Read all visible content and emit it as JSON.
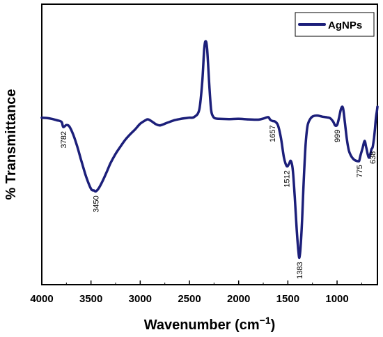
{
  "chart_data": {
    "type": "line",
    "title": "",
    "xlabel": "Wavenumber (cm",
    "xlabel_sup": "−1",
    "xlabel_close": ")",
    "ylabel": "% Transmittance",
    "xlim": [
      4000,
      590
    ],
    "ylim": [
      0,
      100
    ],
    "x_reversed": true,
    "y_ticks_shown": false,
    "x_ticks": [
      4000,
      3500,
      3000,
      2500,
      2000,
      1500,
      1000
    ],
    "x_tick_labels": [
      "4000",
      "3500",
      "3000",
      "2500",
      "2000",
      "1500",
      "1000"
    ],
    "grid": false,
    "legend": "top-right",
    "series": [
      {
        "name": "AgNPs",
        "color": "#1c1f7a",
        "x": [
          4000,
          3950,
          3900,
          3850,
          3800,
          3782,
          3750,
          3720,
          3680,
          3640,
          3600,
          3550,
          3500,
          3470,
          3450,
          3420,
          3380,
          3340,
          3300,
          3250,
          3200,
          3150,
          3100,
          3050,
          3000,
          2950,
          2920,
          2880,
          2840,
          2800,
          2750,
          2700,
          2650,
          2600,
          2550,
          2500,
          2450,
          2400,
          2370,
          2350,
          2335,
          2320,
          2300,
          2280,
          2260,
          2240,
          2200,
          2100,
          2000,
          1900,
          1800,
          1750,
          1700,
          1680,
          1657,
          1630,
          1600,
          1570,
          1540,
          1512,
          1490,
          1470,
          1450,
          1430,
          1410,
          1395,
          1383,
          1370,
          1355,
          1340,
          1320,
          1300,
          1270,
          1240,
          1200,
          1150,
          1100,
          1070,
          1040,
          1020,
          999,
          980,
          960,
          940,
          920,
          900,
          880,
          860,
          840,
          820,
          800,
          785,
          775,
          760,
          740,
          720,
          705,
          690,
          675,
          660,
          650,
          638,
          625,
          615,
          605,
          595,
          590
        ],
        "y": [
          59,
          58.9,
          58.6,
          58.1,
          57.5,
          55.6,
          56.3,
          55.8,
          52.8,
          48.5,
          43.5,
          37.5,
          33,
          32.4,
          32.1,
          33.3,
          36,
          39.2,
          42.5,
          45.8,
          48.5,
          51,
          53,
          54.8,
          56.8,
          58,
          58.4,
          57.6,
          56.6,
          56.2,
          56.8,
          57.5,
          58.1,
          58.5,
          58.8,
          59,
          59.3,
          62,
          72,
          84,
          87,
          84,
          72,
          62,
          59.5,
          58.8,
          58.6,
          58.5,
          58.6,
          58.4,
          58.3,
          58.7,
          59.2,
          58.3,
          57.8,
          57.6,
          56.2,
          51.5,
          44.5,
          41.3,
          42,
          43.2,
          40,
          30,
          18,
          11,
          7.8,
          12,
          22,
          35,
          49,
          56,
          58.7,
          59.6,
          59.8,
          59.4,
          59.1,
          58.8,
          57.6,
          56.2,
          56.4,
          59,
          62.2,
          62.6,
          57,
          51,
          47,
          45.2,
          44.1,
          43.5,
          43.2,
          43.1,
          43.3,
          45.5,
          48,
          50.5,
          48.4,
          45.8,
          44.4,
          46,
          47.5,
          48.3,
          51.5,
          55,
          59,
          61.5,
          63
        ]
      }
    ],
    "annotations": [
      {
        "text": "3782",
        "x": 3782,
        "y": 55.6
      },
      {
        "text": "3450",
        "x": 3450,
        "y": 32.1
      },
      {
        "text": "1657",
        "x": 1657,
        "y": 57.8
      },
      {
        "text": "1512",
        "x": 1512,
        "y": 41.3
      },
      {
        "text": "1383",
        "x": 1383,
        "y": 7.8
      },
      {
        "text": "999",
        "x": 999,
        "y": 56.2
      },
      {
        "text": "775",
        "x": 775,
        "y": 43.3
      },
      {
        "text": "638",
        "x": 638,
        "y": 48.3
      }
    ]
  }
}
